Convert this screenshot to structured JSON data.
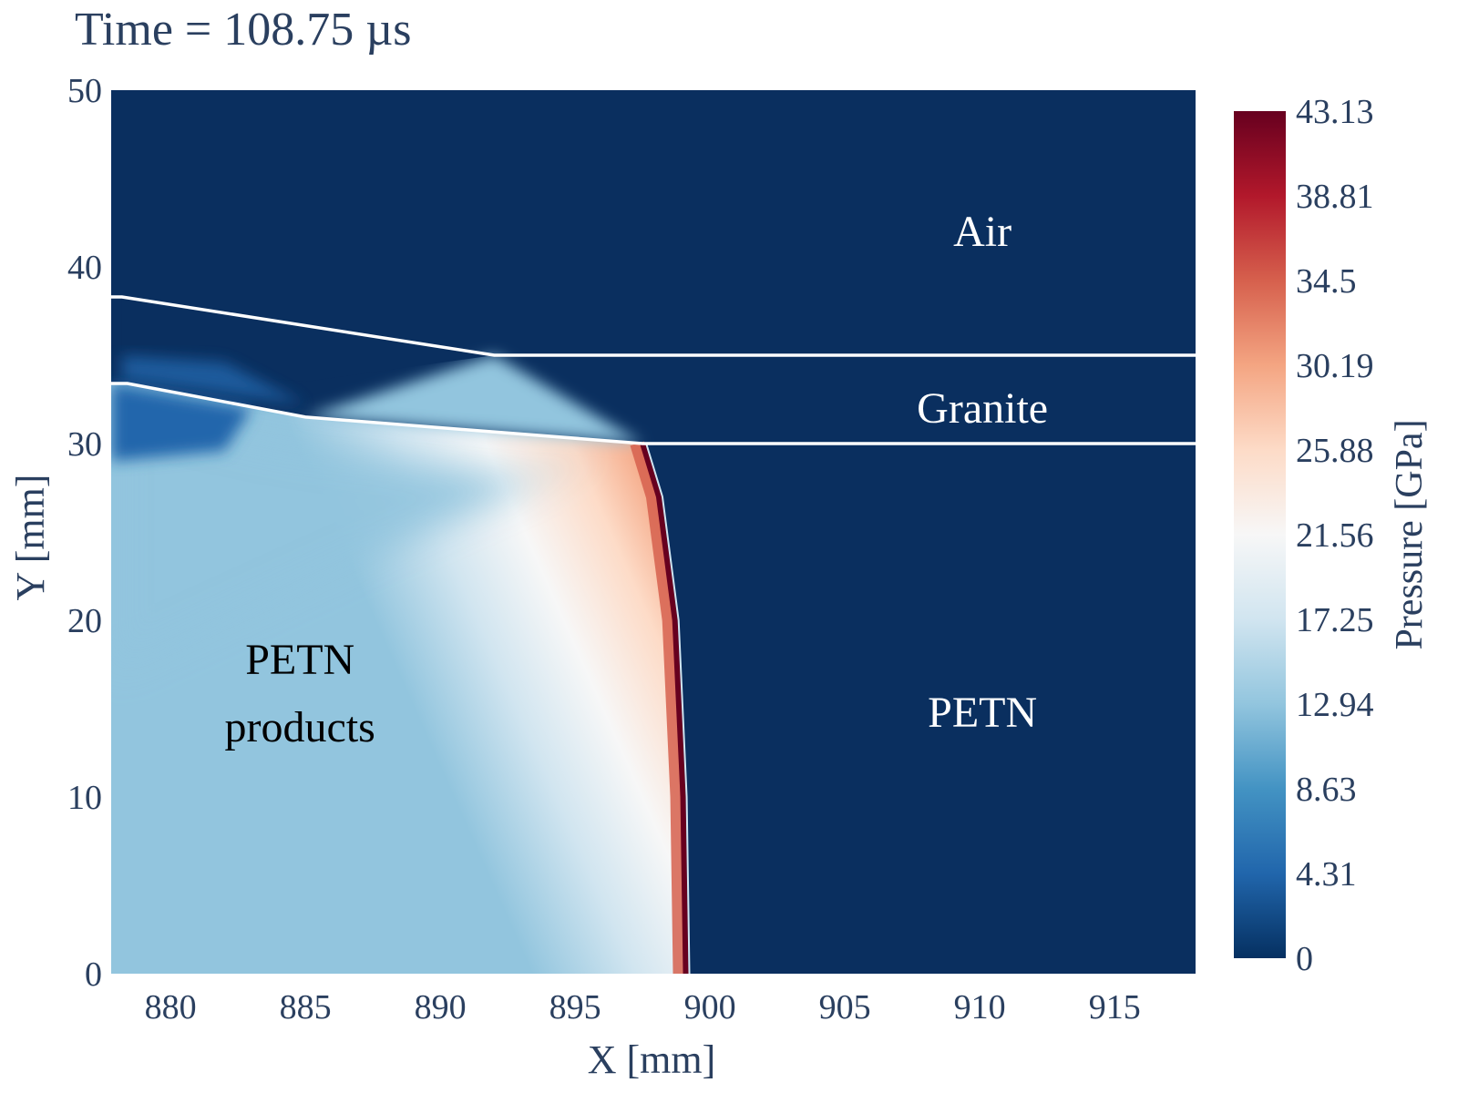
{
  "title": "Time = 108.75 µs",
  "chart_data": {
    "type": "heatmap",
    "title": "Time = 108.75 µs",
    "xlabel": "X [mm]",
    "ylabel": "Y [mm]",
    "xlim": [
      877.8,
      918
    ],
    "ylim": [
      0,
      50
    ],
    "x_ticks": [
      880,
      885,
      890,
      895,
      900,
      905,
      910,
      915
    ],
    "y_ticks": [
      0,
      10,
      20,
      30,
      40,
      50
    ],
    "colorbar": {
      "title": "Pressure [GPa]",
      "range": [
        0,
        43.13
      ],
      "ticks": [
        0,
        4.31,
        8.63,
        12.94,
        17.25,
        21.56,
        25.88,
        30.19,
        34.5,
        38.81,
        43.13
      ],
      "tick_labels": [
        "0",
        "4.31",
        "8.63",
        "12.94",
        "17.25",
        "21.56",
        "25.88",
        "30.19",
        "34.5",
        "38.81",
        "43.13"
      ],
      "colorscale": [
        "#053061",
        "#2166ac",
        "#4393c3",
        "#92c5de",
        "#d1e5f0",
        "#f7f7f7",
        "#fddbc7",
        "#f4a582",
        "#d6604d",
        "#b2182b",
        "#67001f"
      ]
    },
    "regions": [
      {
        "label": "Air",
        "x": 910.1,
        "y": 42,
        "color": "#ffffff"
      },
      {
        "label": "Granite",
        "x": 910.1,
        "y": 32,
        "color": "#ffffff"
      },
      {
        "label": "PETN",
        "x": 910.1,
        "y": 14.8,
        "color": "#ffffff"
      },
      {
        "label": "PETN products",
        "x": 884.8,
        "y": 15,
        "color": "#000000"
      }
    ],
    "interfaces": [
      {
        "name": "air-granite-interface",
        "points": [
          [
            877.8,
            38.3
          ],
          [
            878.2,
            38.3
          ],
          [
            892,
            35
          ],
          [
            918,
            35
          ]
        ]
      },
      {
        "name": "granite-petn-interface",
        "points": [
          [
            877.8,
            33.4
          ],
          [
            878.4,
            33.4
          ],
          [
            885,
            31.5
          ],
          [
            897.5,
            30
          ],
          [
            918,
            30
          ]
        ]
      }
    ],
    "detonation_front": {
      "peak_pressure": 43.13,
      "points": [
        [
          897.5,
          30
        ],
        [
          898.1,
          27
        ],
        [
          898.7,
          20
        ],
        [
          899.0,
          10
        ],
        [
          899.1,
          0
        ]
      ]
    },
    "undisturbed_pressure": 0
  }
}
